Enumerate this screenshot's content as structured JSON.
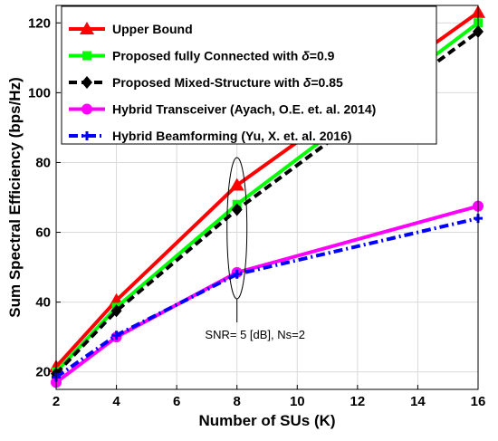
{
  "chart_data": {
    "type": "line",
    "xlabel": "Number of SUs (K)",
    "ylabel": "Sum Spectral Efficiency (bps/Hz)",
    "xlim": [
      2,
      16
    ],
    "ylim": [
      15,
      125
    ],
    "xticks": [
      2,
      4,
      6,
      8,
      10,
      12,
      14,
      16
    ],
    "yticks": [
      20,
      40,
      60,
      80,
      100,
      120
    ],
    "grid": true,
    "legend_position": "top-right",
    "x": [
      2,
      4,
      8,
      16
    ],
    "series": [
      {
        "name": "Upper Bound",
        "color": "#ff0000",
        "marker": "triangle",
        "dash": "solid",
        "values": [
          21.5,
          40.5,
          73.5,
          123
        ]
      },
      {
        "name": "Proposed fully Connected with",
        "delta": "0.9",
        "color": "#00ff00",
        "marker": "square",
        "dash": "solid",
        "values": [
          20,
          38.5,
          68,
          120
        ]
      },
      {
        "name": "Proposed Mixed-Structure with",
        "delta": "0.85",
        "color": "#000000",
        "marker": "diamond",
        "dash": "dashed",
        "values": [
          19.5,
          37.5,
          66.5,
          117.5
        ]
      },
      {
        "name": "Hybrid Transceiver (Ayach, O.E. et. al. 2014)",
        "color": "#ff00ff",
        "marker": "circle",
        "dash": "solid",
        "values": [
          17,
          30,
          48.5,
          67.5
        ]
      },
      {
        "name": "Hybrid Beamforming (Yu, X. et. al. 2016)",
        "color": "#0000ff",
        "marker": "plus",
        "dash": "dashdot",
        "values": [
          18.5,
          30.5,
          48,
          64
        ]
      }
    ],
    "annotation": {
      "text": "SNR= 5 [dB], Ns=2",
      "at_x": 8
    }
  }
}
